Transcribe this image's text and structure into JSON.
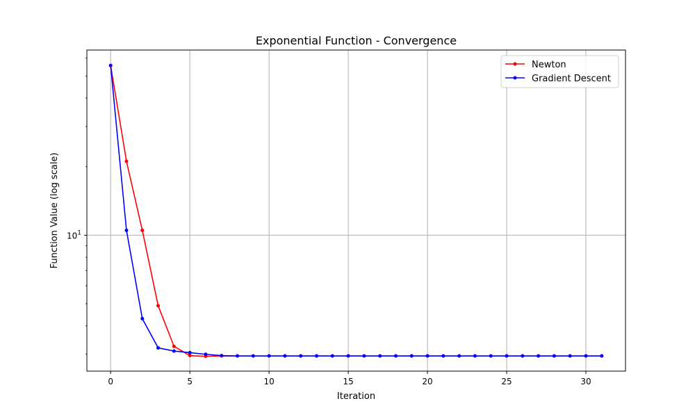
{
  "chart_data": {
    "type": "line",
    "title": "Exponential Function - Convergence",
    "xlabel": "Iteration",
    "ylabel": "Function Value (log scale)",
    "yscale": "log",
    "xlim": [
      -1.5,
      32.5
    ],
    "ylim": [
      2.53,
      65
    ],
    "xticks": [
      0,
      5,
      10,
      15,
      20,
      25,
      30
    ],
    "yticks": [
      {
        "value": 10,
        "base": "10",
        "exp": "1"
      }
    ],
    "grid": true,
    "legend_position": "top-right",
    "series": [
      {
        "name": "Newton",
        "color": "#ff0000",
        "x": [
          0,
          1,
          2,
          3,
          4,
          5,
          6,
          7,
          8,
          9,
          10,
          11,
          12,
          13,
          14,
          15,
          16,
          17,
          18,
          19,
          20,
          21,
          22,
          23,
          24,
          25,
          26,
          27,
          28,
          29,
          30,
          31
        ],
        "y": [
          55.6,
          21.1,
          10.5,
          4.9,
          3.25,
          2.96,
          2.94,
          2.95,
          2.95,
          2.95,
          2.95,
          2.95,
          2.95,
          2.95,
          2.95,
          2.95,
          2.95,
          2.95,
          2.95,
          2.95,
          2.95,
          2.95,
          2.95,
          2.95,
          2.95,
          2.95,
          2.95,
          2.95,
          2.95,
          2.95,
          2.95,
          2.95
        ]
      },
      {
        "name": "Gradient Descent",
        "color": "#0000ff",
        "x": [
          0,
          1,
          2,
          3,
          4,
          5,
          6,
          7,
          8,
          9,
          10,
          11,
          12,
          13,
          14,
          15,
          16,
          17,
          18,
          19,
          20,
          21,
          22,
          23,
          24,
          25,
          26,
          27,
          28,
          29,
          30,
          31
        ],
        "y": [
          55.6,
          10.5,
          4.3,
          3.2,
          3.1,
          3.05,
          3.0,
          2.96,
          2.95,
          2.95,
          2.95,
          2.95,
          2.95,
          2.95,
          2.95,
          2.95,
          2.95,
          2.95,
          2.95,
          2.95,
          2.95,
          2.95,
          2.95,
          2.95,
          2.95,
          2.95,
          2.95,
          2.95,
          2.95,
          2.95,
          2.95,
          2.95
        ]
      }
    ]
  }
}
